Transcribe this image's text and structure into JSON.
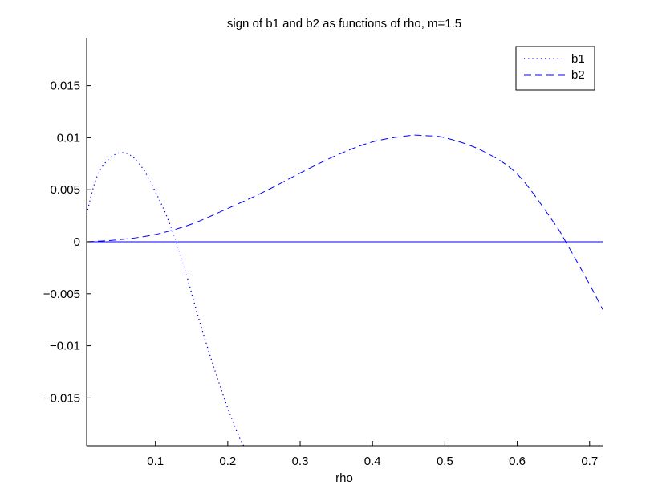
{
  "chart_data": {
    "type": "line",
    "title": "sign of b1 and b2 as functions of rho, m=1.5",
    "xlabel": "rho",
    "ylabel": "",
    "xlim": [
      0.005,
      0.718
    ],
    "ylim": [
      -0.0196,
      0.0196
    ],
    "xticks": [
      0.1,
      0.2,
      0.3,
      0.4,
      0.5,
      0.6,
      0.7
    ],
    "xtick_labels": [
      "0.1",
      "0.2",
      "0.3",
      "0.4",
      "0.5",
      "0.6",
      "0.7"
    ],
    "yticks": [
      -0.015,
      -0.01,
      -0.005,
      0,
      0.005,
      0.01,
      0.015
    ],
    "ytick_labels": [
      "−0.015",
      "−0.01",
      "−0.005",
      "0",
      "0.005",
      "0.01",
      "0.015"
    ],
    "grid": false,
    "legend_position": "top-right",
    "series": [
      {
        "name": "b1",
        "style": "dotted",
        "color": "#0000ff",
        "x": [
          0.005,
          0.02,
          0.04,
          0.06,
          0.08,
          0.1,
          0.12,
          0.14,
          0.16,
          0.18,
          0.2,
          0.215,
          0.222
        ],
        "y": [
          0.0027,
          0.0064,
          0.0082,
          0.0085,
          0.0073,
          0.0048,
          0.0017,
          -0.0025,
          -0.0074,
          -0.0119,
          -0.016,
          -0.0186,
          -0.0196
        ]
      },
      {
        "name": "b2",
        "style": "dashed",
        "color": "#0000ff",
        "x": [
          0.005,
          0.05,
          0.1,
          0.15,
          0.2,
          0.25,
          0.3,
          0.35,
          0.4,
          0.45,
          0.47,
          0.5,
          0.55,
          0.6,
          0.65,
          0.667,
          0.7,
          0.718
        ],
        "y": [
          0.0,
          0.0002,
          0.0007,
          0.0017,
          0.0032,
          0.0048,
          0.0066,
          0.0083,
          0.0096,
          0.0102,
          0.0102,
          0.01,
          0.0088,
          0.0065,
          0.0019,
          0.0,
          -0.0041,
          -0.0065
        ]
      },
      {
        "name": "",
        "style": "solid",
        "color": "#0000ff",
        "x": [
          0.005,
          0.718
        ],
        "y": [
          0,
          0
        ]
      }
    ]
  }
}
